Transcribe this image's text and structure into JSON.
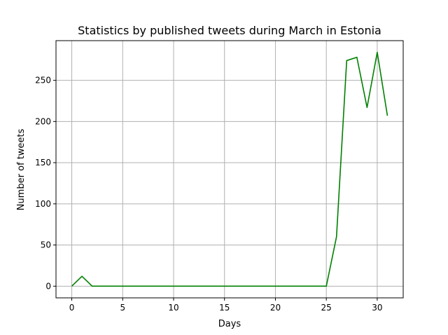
{
  "chart_data": {
    "type": "line",
    "title": "Statistics by published tweets during March in Estonia",
    "xlabel": "Days",
    "ylabel": "Number of tweets",
    "xlim": [
      -1.55,
      32.55
    ],
    "ylim": [
      -14.2,
      298.2
    ],
    "xticks": [
      0,
      5,
      10,
      15,
      20,
      25,
      30
    ],
    "yticks": [
      0,
      50,
      100,
      150,
      200,
      250
    ],
    "grid": true,
    "series": [
      {
        "color": "#008000",
        "x": [
          0,
          1,
          2,
          3,
          4,
          5,
          6,
          7,
          8,
          9,
          10,
          11,
          12,
          13,
          14,
          15,
          16,
          17,
          18,
          19,
          20,
          21,
          22,
          23,
          24,
          25,
          26,
          27,
          28,
          29,
          30,
          31
        ],
        "values": [
          0,
          12,
          0,
          0,
          0,
          0,
          0,
          0,
          0,
          0,
          0,
          0,
          0,
          0,
          0,
          0,
          0,
          0,
          0,
          0,
          0,
          0,
          0,
          0,
          0,
          0,
          60,
          274,
          278,
          217,
          284,
          207
        ]
      }
    ]
  }
}
